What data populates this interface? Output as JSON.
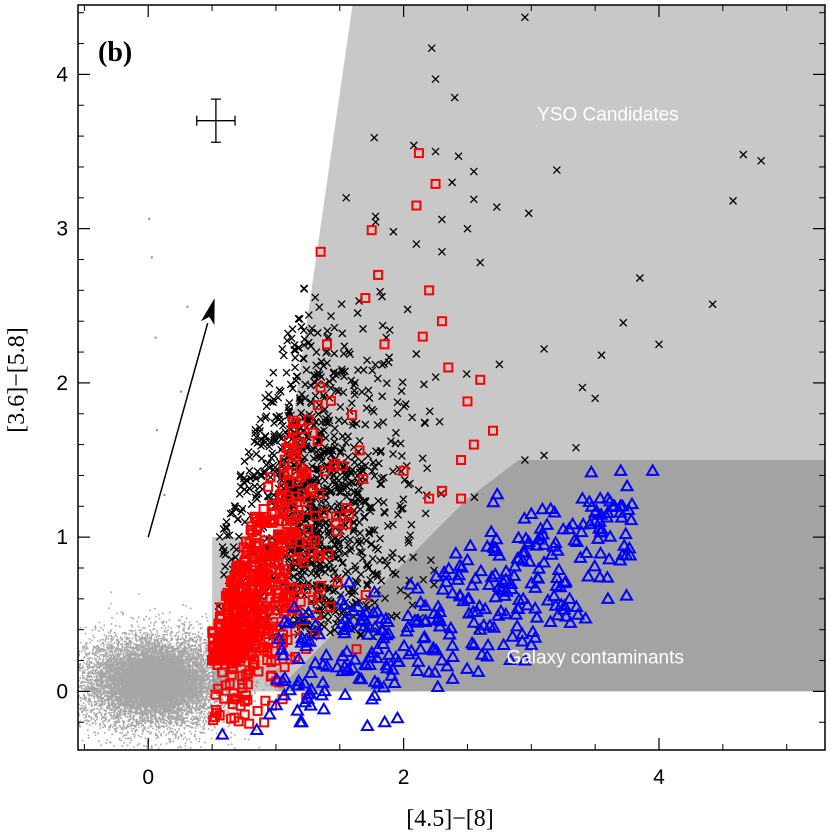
{
  "chart_data": {
    "type": "scatter",
    "panel_label": "(b)",
    "xlabel": "[4.5]−[8]",
    "ylabel": "[3.6]−[5.8]",
    "xlim": [
      -0.55,
      5.3
    ],
    "ylim": [
      -0.38,
      4.45
    ],
    "x_ticks": [
      0,
      2,
      4
    ],
    "y_ticks": [
      0,
      1,
      2,
      3,
      4
    ],
    "regions": [
      {
        "name": "YSO Candidates",
        "color": "#c8c8c8",
        "vertices": [
          [
            0.5,
            0.0
          ],
          [
            0.5,
            1.0
          ],
          [
            1.0,
            1.0
          ],
          [
            1.6,
            4.45
          ],
          [
            5.3,
            4.45
          ],
          [
            5.3,
            1.5
          ],
          [
            2.9,
            1.5
          ],
          [
            2.5,
            1.25
          ],
          [
            2.1,
            0.0
          ]
        ]
      },
      {
        "name": "Galaxy contaminants",
        "color": "#a3a3a3",
        "vertices": [
          [
            0.5,
            0.0
          ],
          [
            2.1,
            0.0
          ],
          [
            5.3,
            0.0
          ],
          [
            5.3,
            1.5
          ],
          [
            2.9,
            1.5
          ],
          [
            2.5,
            1.25
          ],
          [
            1.0,
            0.0
          ]
        ]
      }
    ],
    "annotations": [
      {
        "text": "YSO Candidates",
        "x": 3.6,
        "y": 3.7
      },
      {
        "text": "Galaxy contaminants",
        "x": 3.5,
        "y": 0.18
      }
    ],
    "error_bar": {
      "x": 0.53,
      "y": 3.7,
      "xerr": 0.15,
      "yerr": 0.14
    },
    "reddening_vector": {
      "from": [
        0.0,
        1.0
      ],
      "to": [
        0.52,
        2.55
      ]
    },
    "series": [
      {
        "name": "field stars",
        "marker": "dot",
        "color": "#888888",
        "center": [
          0.05,
          0.07
        ],
        "spread": [
          0.3,
          0.15
        ],
        "count": 9000
      },
      {
        "name": "YSO candidates (x)",
        "marker": "x",
        "color": "#000000",
        "points": [
          [
            2.22,
            4.17
          ],
          [
            2.95,
            4.37
          ],
          [
            2.25,
            3.97
          ],
          [
            2.4,
            3.85
          ],
          [
            1.77,
            3.59
          ],
          [
            2.08,
            3.54
          ],
          [
            2.25,
            3.5
          ],
          [
            2.43,
            3.47
          ],
          [
            2.55,
            3.37
          ],
          [
            2.38,
            3.3
          ],
          [
            2.55,
            3.19
          ],
          [
            2.73,
            3.14
          ],
          [
            3.2,
            3.38
          ],
          [
            2.98,
            3.1
          ],
          [
            4.66,
            3.48
          ],
          [
            4.8,
            3.44
          ],
          [
            4.58,
            3.18
          ],
          [
            1.78,
            3.08
          ],
          [
            2.3,
            3.06
          ],
          [
            2.5,
            3.0
          ],
          [
            1.55,
            3.2
          ],
          [
            1.92,
            2.98
          ],
          [
            2.1,
            2.9
          ],
          [
            2.3,
            2.85
          ],
          [
            2.6,
            2.78
          ],
          [
            3.85,
            2.68
          ],
          [
            4.42,
            2.51
          ],
          [
            3.72,
            2.39
          ],
          [
            3.1,
            2.22
          ],
          [
            3.55,
            2.18
          ],
          [
            4.0,
            2.25
          ],
          [
            2.75,
            2.12
          ],
          [
            3.4,
            1.97
          ],
          [
            3.5,
            1.9
          ],
          [
            3.35,
            1.58
          ],
          [
            3.1,
            1.53
          ],
          [
            2.95,
            1.5
          ],
          [
            1.05,
            2.22
          ],
          [
            1.15,
            2.1
          ],
          [
            1.3,
            2.05
          ]
        ],
        "cluster": {
          "center": [
            1.1,
            1.25
          ],
          "spread": [
            0.45,
            0.55
          ],
          "count": 1100
        }
      },
      {
        "name": "YSO candidates (squares)",
        "marker": "square",
        "color": "#ff0000",
        "points": [
          [
            2.12,
            3.49
          ],
          [
            2.25,
            3.29
          ],
          [
            2.1,
            3.15
          ],
          [
            1.75,
            2.99
          ],
          [
            1.35,
            2.85
          ],
          [
            1.8,
            2.7
          ],
          [
            2.2,
            2.6
          ],
          [
            1.7,
            2.55
          ],
          [
            2.3,
            2.4
          ],
          [
            2.15,
            2.3
          ],
          [
            1.85,
            2.25
          ],
          [
            1.4,
            2.25
          ],
          [
            2.35,
            2.1
          ],
          [
            2.6,
            2.02
          ],
          [
            2.5,
            1.88
          ],
          [
            2.55,
            1.6
          ],
          [
            2.7,
            1.69
          ],
          [
            2.45,
            1.5
          ],
          [
            2.3,
            1.3
          ],
          [
            2.45,
            1.25
          ],
          [
            2.2,
            1.25
          ],
          [
            1.35,
            1.97
          ],
          [
            1.2,
            1.7
          ],
          [
            2.0,
            1.43
          ]
        ],
        "cluster": {
          "center": [
            0.9,
            0.7
          ],
          "spread": [
            0.4,
            0.45
          ],
          "count": 700
        }
      },
      {
        "name": "Galaxy contaminants (triangles)",
        "marker": "triangle",
        "color": "#0000ff",
        "points": [
          [
            3.95,
            1.43
          ],
          [
            3.7,
            1.43
          ],
          [
            3.47,
            1.42
          ],
          [
            3.75,
            1.33
          ],
          [
            3.6,
            1.25
          ],
          [
            3.4,
            1.25
          ],
          [
            3.7,
            1.2
          ],
          [
            3.0,
            1.15
          ],
          [
            3.55,
            1.05
          ],
          [
            3.25,
            1.05
          ],
          [
            3.1,
            0.95
          ],
          [
            2.75,
            0.88
          ],
          [
            2.5,
            0.85
          ],
          [
            3.0,
            0.7
          ],
          [
            3.3,
            0.6
          ],
          [
            3.6,
            0.6
          ],
          [
            2.8,
            0.5
          ],
          [
            3.15,
            0.45
          ],
          [
            2.6,
            0.4
          ],
          [
            3.0,
            0.3
          ],
          [
            2.3,
            0.2
          ],
          [
            2.55,
            0.3
          ],
          [
            2.95,
            0.2
          ],
          [
            1.75,
            0.25
          ],
          [
            1.6,
            0.15
          ],
          [
            1.8,
            0.05
          ],
          [
            1.25,
            -0.05
          ],
          [
            0.85,
            -0.25
          ],
          [
            0.58,
            -0.28
          ],
          [
            0.95,
            -0.15
          ]
        ],
        "cluster": {
          "center": [
            2.0,
            0.5
          ],
          "spread": [
            0.8,
            0.35
          ],
          "count": 320
        }
      }
    ]
  }
}
